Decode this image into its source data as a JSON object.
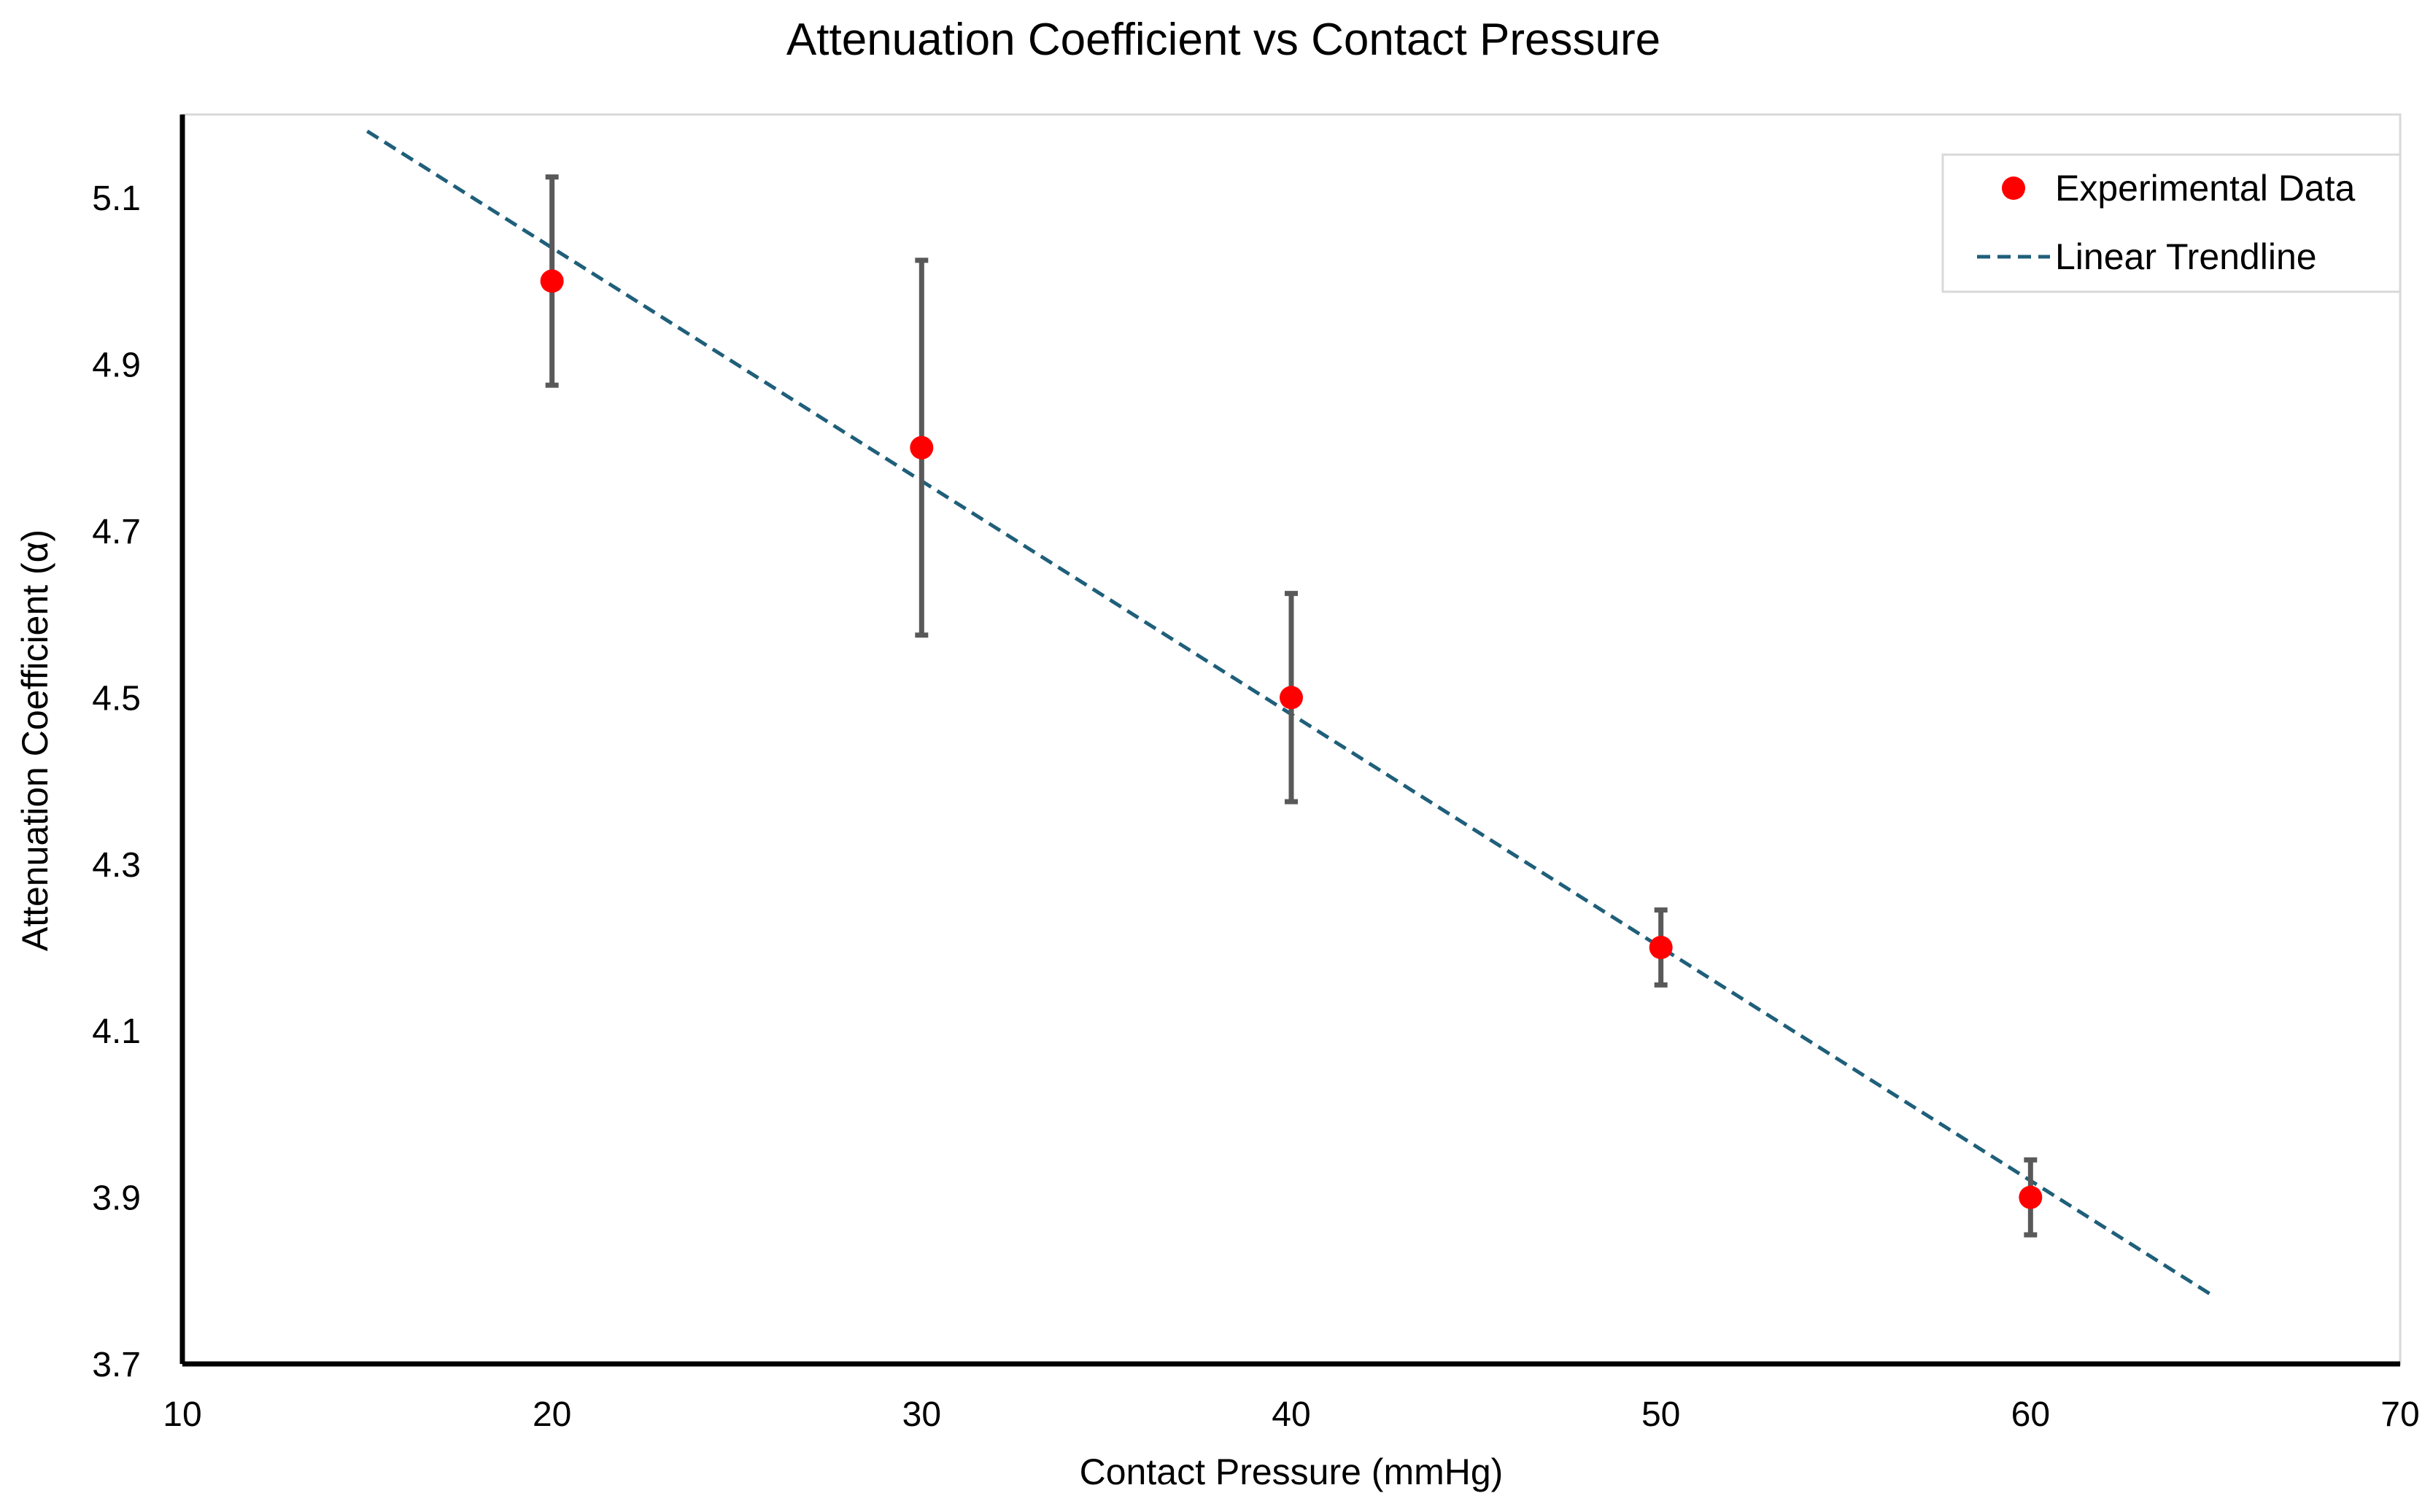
{
  "chart_data": {
    "type": "scatter",
    "title": "Attenuation Coefficient vs Contact Pressure",
    "xlabel": "Contact Pressure (mmHg)",
    "ylabel": "Attenuation Coefficient (α)",
    "xlim": [
      10,
      70
    ],
    "ylim": [
      3.7,
      5.2
    ],
    "xticks": [
      10,
      20,
      30,
      40,
      50,
      60,
      70
    ],
    "xtick_labels": [
      "10",
      "20",
      "30",
      "40",
      "50",
      "60",
      "70"
    ],
    "yticks": [
      3.7,
      3.9,
      4.1,
      4.3,
      4.5,
      4.7,
      4.9,
      5.1
    ],
    "ytick_labels": [
      "3.7",
      "3.9",
      "4.1",
      "4.3",
      "4.5",
      "4.7",
      "4.9",
      "5.1"
    ],
    "grid": false,
    "legend_position": "top-right",
    "series": [
      {
        "name": "Experimental Data",
        "kind": "scatter-with-error-bars",
        "color": "#ff0000",
        "errorbar_color": "#595959",
        "x": [
          20,
          30,
          40,
          50,
          60
        ],
        "y": [
          5.0,
          4.8,
          4.5,
          4.2,
          3.9
        ],
        "error": [
          0.125,
          0.225,
          0.125,
          0.045,
          0.045
        ]
      },
      {
        "name": "Linear Trendline",
        "kind": "line-dashed",
        "color": "#1f5f7a",
        "x": [
          15,
          65
        ],
        "y": [
          5.18,
          3.78
        ]
      }
    ]
  }
}
